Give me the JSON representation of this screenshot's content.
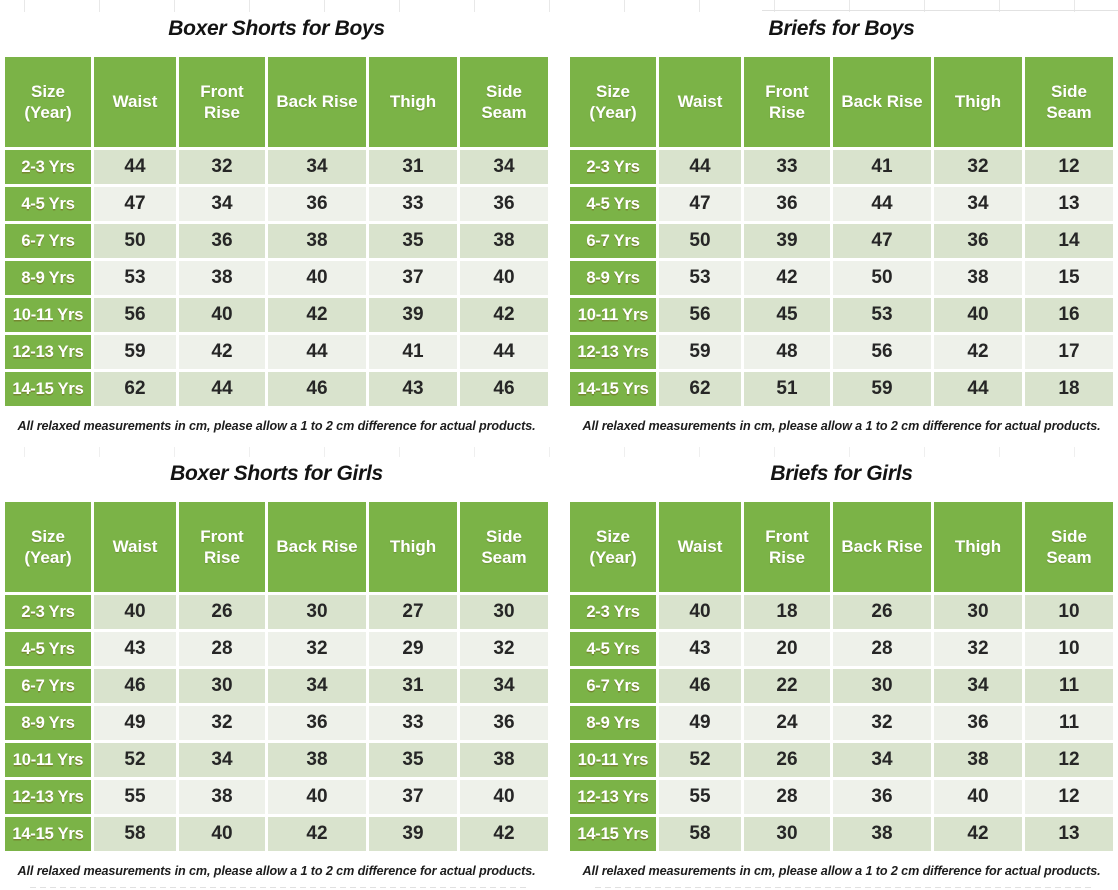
{
  "footnote": "All relaxed measurements in cm, please allow a 1 to 2 cm difference for actual products.",
  "columns": [
    "Size (Year)",
    "Waist",
    "Front Rise",
    "Back Rise",
    "Thigh",
    "Side Seam"
  ],
  "units": "cm",
  "tables": [
    {
      "title": "Boxer Shorts for Boys",
      "rows": [
        [
          "2-3 Yrs",
          "44",
          "32",
          "34",
          "31",
          "34"
        ],
        [
          "4-5 Yrs",
          "47",
          "34",
          "36",
          "33",
          "36"
        ],
        [
          "6-7 Yrs",
          "50",
          "36",
          "38",
          "35",
          "38"
        ],
        [
          "8-9 Yrs",
          "53",
          "38",
          "40",
          "37",
          "40"
        ],
        [
          "10-11 Yrs",
          "56",
          "40",
          "42",
          "39",
          "42"
        ],
        [
          "12-13 Yrs",
          "59",
          "42",
          "44",
          "41",
          "44"
        ],
        [
          "14-15 Yrs",
          "62",
          "44",
          "46",
          "43",
          "46"
        ]
      ]
    },
    {
      "title": "Briefs for Boys",
      "rows": [
        [
          "2-3 Yrs",
          "44",
          "33",
          "41",
          "32",
          "12"
        ],
        [
          "4-5 Yrs",
          "47",
          "36",
          "44",
          "34",
          "13"
        ],
        [
          "6-7 Yrs",
          "50",
          "39",
          "47",
          "36",
          "14"
        ],
        [
          "8-9 Yrs",
          "53",
          "42",
          "50",
          "38",
          "15"
        ],
        [
          "10-11 Yrs",
          "56",
          "45",
          "53",
          "40",
          "16"
        ],
        [
          "12-13 Yrs",
          "59",
          "48",
          "56",
          "42",
          "17"
        ],
        [
          "14-15 Yrs",
          "62",
          "51",
          "59",
          "44",
          "18"
        ]
      ]
    },
    {
      "title": "Boxer Shorts for Girls",
      "rows": [
        [
          "2-3 Yrs",
          "40",
          "26",
          "30",
          "27",
          "30"
        ],
        [
          "4-5 Yrs",
          "43",
          "28",
          "32",
          "29",
          "32"
        ],
        [
          "6-7 Yrs",
          "46",
          "30",
          "34",
          "31",
          "34"
        ],
        [
          "8-9 Yrs",
          "49",
          "32",
          "36",
          "33",
          "36"
        ],
        [
          "10-11 Yrs",
          "52",
          "34",
          "38",
          "35",
          "38"
        ],
        [
          "12-13 Yrs",
          "55",
          "38",
          "40",
          "37",
          "40"
        ],
        [
          "14-15 Yrs",
          "58",
          "40",
          "42",
          "39",
          "42"
        ]
      ]
    },
    {
      "title": "Briefs for Girls",
      "rows": [
        [
          "2-3 Yrs",
          "40",
          "18",
          "26",
          "30",
          "10"
        ],
        [
          "4-5 Yrs",
          "43",
          "20",
          "28",
          "32",
          "10"
        ],
        [
          "6-7 Yrs",
          "46",
          "22",
          "30",
          "34",
          "11"
        ],
        [
          "8-9 Yrs",
          "49",
          "24",
          "32",
          "36",
          "11"
        ],
        [
          "10-11 Yrs",
          "52",
          "26",
          "34",
          "38",
          "12"
        ],
        [
          "12-13 Yrs",
          "55",
          "28",
          "36",
          "40",
          "12"
        ],
        [
          "14-15 Yrs",
          "58",
          "30",
          "38",
          "42",
          "13"
        ]
      ]
    }
  ],
  "colors": {
    "green": "#7bb347",
    "row_odd": "#d9e3cd",
    "row_even": "#eef1ea",
    "text_dark": "#262626"
  }
}
